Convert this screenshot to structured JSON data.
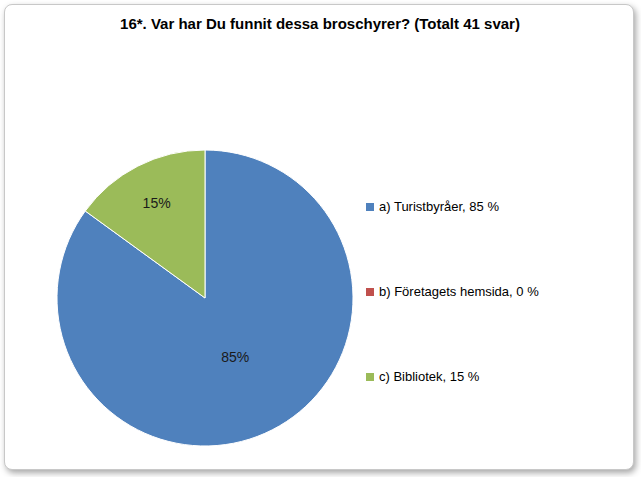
{
  "chart_data": {
    "type": "pie",
    "title": "16*. Var har Du funnit dessa broschyrer? (Totalt 41 svar)",
    "categories": [
      "a) Turistbyråer, 85 %",
      "b) Företagets hemsida, 0 %",
      "c) Bibliotek, 15 %"
    ],
    "values": [
      85,
      0,
      15
    ],
    "value_labels": [
      "85%",
      null,
      "15%"
    ],
    "colors": [
      "#4F81BD",
      "#C0504D",
      "#9BBB59"
    ],
    "data_labels": true,
    "legend": "right"
  }
}
